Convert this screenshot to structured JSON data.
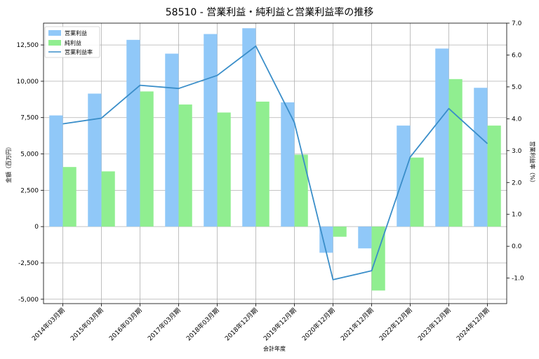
{
  "chart_data": {
    "type": "bar",
    "title": "58510 - 営業利益・純利益と営業利益率の推移",
    "xlabel": "会計年度",
    "ylabel": "金額（百万円）",
    "y2label": "営業利益率（%）",
    "categories": [
      "2014年03月期",
      "2015年03月期",
      "2016年03月期",
      "2017年03月期",
      "2018年03月期",
      "2018年12月期",
      "2019年12月期",
      "2020年12月期",
      "2021年12月期",
      "2022年12月期",
      "2023年12月期",
      "2024年12月期"
    ],
    "ylim": [
      -5300,
      14000
    ],
    "y_ticks": [
      -5000,
      -2500,
      0,
      2500,
      5000,
      7500,
      10000,
      12500
    ],
    "y_tick_labels": [
      "-5,000",
      "-2,500",
      "0",
      "2,500",
      "5,000",
      "7,500",
      "10,000",
      "12,500"
    ],
    "y2lim": [
      -1.8,
      7.0
    ],
    "y2_ticks": [
      -1.0,
      0.0,
      1.0,
      2.0,
      3.0,
      4.0,
      5.0,
      6.0,
      7.0
    ],
    "y2_tick_labels": [
      "-1.0",
      "0.0",
      "1.0",
      "2.0",
      "3.0",
      "4.0",
      "5.0",
      "6.0",
      "7.0"
    ],
    "grid": true,
    "legend_position": "top-left",
    "series": [
      {
        "name": "営業利益",
        "kind": "bar",
        "axis": "left",
        "color": "#90c8f8",
        "values": [
          7650,
          9150,
          12850,
          11900,
          13250,
          13650,
          8550,
          -1800,
          -1500,
          6950,
          12250,
          9550
        ]
      },
      {
        "name": "純利益",
        "kind": "bar",
        "axis": "left",
        "color": "#90ee90",
        "values": [
          4100,
          3800,
          9300,
          8400,
          7850,
          8600,
          4950,
          -700,
          -4400,
          4750,
          10150,
          6950
        ]
      },
      {
        "name": "営業利益率",
        "kind": "line",
        "axis": "right",
        "color": "#3a8ec9",
        "values": [
          3.84,
          4.02,
          5.05,
          4.95,
          5.36,
          6.28,
          3.88,
          -1.05,
          -0.77,
          2.8,
          4.32,
          3.22
        ]
      }
    ]
  }
}
